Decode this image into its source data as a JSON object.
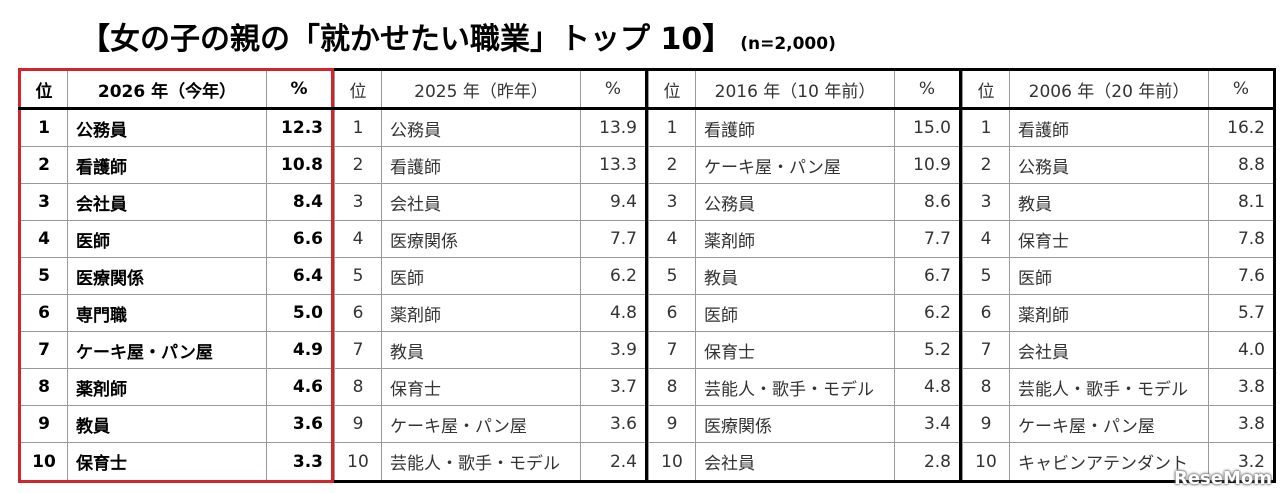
{
  "header": {
    "title": "【女の子の親の「就かせたい職業」トップ 10】",
    "subtitle": "(n=2,000)"
  },
  "tables": [
    {
      "header": [
        "位",
        "2026 年（今年）",
        "%"
      ],
      "rows": [
        [
          "1",
          "公務員",
          "12.3"
        ],
        [
          "2",
          "看護師",
          "10.8"
        ],
        [
          "3",
          "会社員",
          "8.4"
        ],
        [
          "4",
          "医師",
          "6.6"
        ],
        [
          "5",
          "医療関係",
          "6.4"
        ],
        [
          "6",
          "専門職",
          "5.0"
        ],
        [
          "7",
          "ケーキ屋・パン屋",
          "4.9"
        ],
        [
          "8",
          "薬剤師",
          "4.6"
        ],
        [
          "9",
          "教員",
          "3.6"
        ],
        [
          "10",
          "保育士",
          "3.3"
        ]
      ]
    },
    {
      "header": [
        "位",
        "2025 年（昨年）",
        "%"
      ],
      "rows": [
        [
          "1",
          "公務員",
          "13.9"
        ],
        [
          "2",
          "看護師",
          "13.3"
        ],
        [
          "3",
          "会社員",
          "9.4"
        ],
        [
          "4",
          "医療関係",
          "7.7"
        ],
        [
          "5",
          "医師",
          "6.2"
        ],
        [
          "6",
          "薬剤師",
          "4.8"
        ],
        [
          "7",
          "教員",
          "3.9"
        ],
        [
          "8",
          "保育士",
          "3.7"
        ],
        [
          "9",
          "ケーキ屋・パン屋",
          "3.6"
        ],
        [
          "10",
          "芸能人・歌手・モデル",
          "2.4"
        ]
      ]
    },
    {
      "header": [
        "位",
        "2016 年（10 年前）",
        "%"
      ],
      "rows": [
        [
          "1",
          "看護師",
          "15.0"
        ],
        [
          "2",
          "ケーキ屋・パン屋",
          "10.9"
        ],
        [
          "3",
          "公務員",
          "8.6"
        ],
        [
          "4",
          "薬剤師",
          "7.7"
        ],
        [
          "5",
          "教員",
          "6.7"
        ],
        [
          "6",
          "医師",
          "6.2"
        ],
        [
          "7",
          "保育士",
          "5.2"
        ],
        [
          "8",
          "芸能人・歌手・モデル",
          "4.8"
        ],
        [
          "9",
          "医療関係",
          "3.4"
        ],
        [
          "10",
          "会社員",
          "2.8"
        ]
      ]
    },
    {
      "header": [
        "位",
        "2006 年（20 年前）",
        "%"
      ],
      "rows": [
        [
          "1",
          "看護師",
          "16.2"
        ],
        [
          "2",
          "公務員",
          "8.8"
        ],
        [
          "3",
          "教員",
          "8.1"
        ],
        [
          "4",
          "保育士",
          "7.8"
        ],
        [
          "5",
          "医師",
          "7.6"
        ],
        [
          "6",
          "薬剤師",
          "5.7"
        ],
        [
          "7",
          "会社員",
          "4.0"
        ],
        [
          "8",
          "芸能人・歌手・モデル",
          "3.8"
        ],
        [
          "9",
          "ケーキ屋・パン屋",
          "3.8"
        ],
        [
          "10",
          "キャビンアテンダント",
          "3.2"
        ]
      ]
    }
  ],
  "watermark": "ReseMom"
}
